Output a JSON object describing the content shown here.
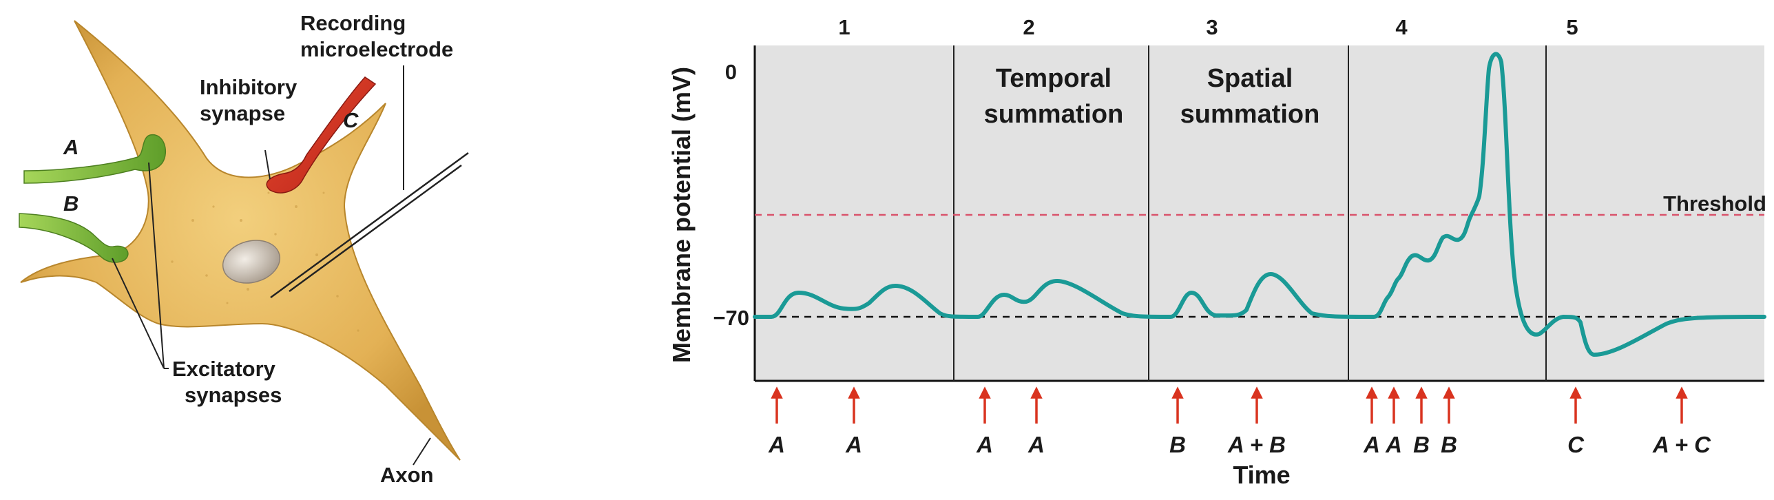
{
  "neuron_figure": {
    "labels": {
      "recording_line1": "Recording",
      "recording_line2": "microelectrode",
      "inhibitory_line1": "Inhibitory",
      "inhibitory_line2": "synapse",
      "synapse_c": "C",
      "synapse_a": "A",
      "synapse_b": "B",
      "excitatory_line1": "Excitatory",
      "excitatory_line2": "synapses",
      "axon": "Axon"
    },
    "colors": {
      "neuron_body": "#e6b85a",
      "excitatory_synapse": "#8cc63f",
      "inhibitory_synapse": "#d9331f",
      "nucleus": "#c8bfb4"
    }
  },
  "graph": {
    "ylabel": "Membrane potential (mV)",
    "xlabel": "Time",
    "y_tick_top": "0",
    "y_tick_rest": "−70",
    "threshold_label": "Threshold",
    "panels": [
      {
        "number": "1",
        "title_line1": "",
        "title_line2": "",
        "stimuli": [
          "A",
          "A"
        ]
      },
      {
        "number": "2",
        "title_line1": "Temporal",
        "title_line2": "summation",
        "stimuli": [
          "A",
          "A"
        ]
      },
      {
        "number": "3",
        "title_line1": "Spatial",
        "title_line2": "summation",
        "stimuli": [
          "B",
          "A + B"
        ]
      },
      {
        "number": "4",
        "title_line1": "",
        "title_line2": "",
        "stimuli": [
          "A",
          "A",
          "B",
          "B"
        ]
      },
      {
        "number": "5",
        "title_line1": "",
        "title_line2": "",
        "stimuli": [
          "C",
          "A + C"
        ]
      }
    ],
    "colors": {
      "panel_bg": "#e2e2e2",
      "trace": "#1a9a96",
      "threshold_line": "#d9536c",
      "arrow": "#d9331f"
    }
  }
}
